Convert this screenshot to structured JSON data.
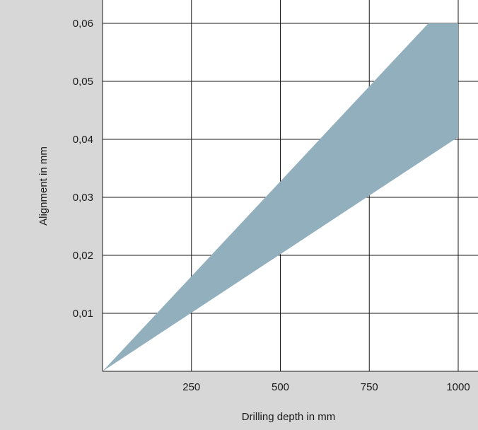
{
  "chart_data": {
    "type": "area",
    "xlabel": "Drilling depth in mm",
    "ylabel": "Alignment in mm",
    "xlim": [
      0,
      1000
    ],
    "ylim": [
      0,
      0.06
    ],
    "x_ticks": [
      250,
      500,
      750,
      1000
    ],
    "x_tick_labels": [
      "250",
      "500",
      "750",
      "1000"
    ],
    "y_ticks": [
      0.01,
      0.02,
      0.03,
      0.04,
      0.05,
      0.06
    ],
    "y_tick_labels": [
      "0,01",
      "0,02",
      "0,03",
      "0,04",
      "0,05",
      "0,06"
    ],
    "grid": true,
    "series": [
      {
        "upper": [
          [
            0,
            0
          ],
          [
            916,
            0.06
          ],
          [
            1000,
            0.06
          ]
        ],
        "lower": [
          [
            0,
            0
          ],
          [
            1000,
            0.0404
          ]
        ]
      }
    ],
    "colors": {
      "band": "#92afbe",
      "grid": "#1a1a1a",
      "frame_background": "#d7d7d7"
    }
  }
}
